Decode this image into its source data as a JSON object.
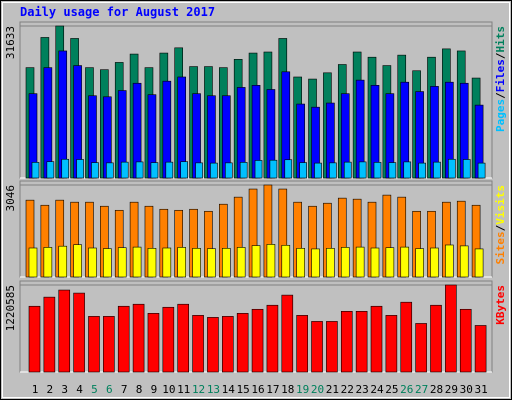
{
  "chart_data": [
    {
      "type": "bar",
      "title": "Daily usage for August 2017",
      "legend_separator": "/",
      "ylim": [
        0,
        31633
      ],
      "yticks": [
        31633
      ],
      "series": [
        {
          "name": "Pages",
          "color": "#00c0ff",
          "values": [
            3250,
            3400,
            3900,
            3850,
            3200,
            3150,
            3300,
            3350,
            3200,
            3300,
            3400,
            3150,
            3100,
            3150,
            3250,
            3650,
            3700,
            3800,
            3200,
            3100,
            3150,
            3300,
            3350,
            3250,
            3200,
            3350,
            3100,
            3300,
            3900,
            3850,
            3100
          ]
        },
        {
          "name": "Files",
          "color": "#0000ff",
          "values": [
            17550,
            22970,
            26440,
            23400,
            17120,
            16900,
            18200,
            19720,
            17340,
            20150,
            21020,
            17550,
            17120,
            17120,
            18850,
            19290,
            18420,
            22100,
            15390,
            14740,
            15600,
            17550,
            20370,
            19290,
            17550,
            19940,
            17990,
            19070,
            19940,
            19720,
            15170
          ]
        },
        {
          "name": "Hits",
          "color": "#00805c",
          "values": [
            22970,
            29250,
            31633,
            29040,
            22970,
            22540,
            24050,
            25790,
            22970,
            26000,
            27090,
            23190,
            23190,
            22970,
            24700,
            26000,
            26220,
            29040,
            21020,
            20590,
            21890,
            23620,
            26220,
            25140,
            23400,
            25570,
            22320,
            25140,
            26870,
            26440,
            20800
          ]
        }
      ]
    },
    {
      "type": "bar",
      "legend_separator": "/",
      "ylim": [
        0,
        3046
      ],
      "yticks": [
        3046
      ],
      "series": [
        {
          "name": "Sites",
          "color": "#ff8000",
          "values": [
            2544,
            2376,
            2544,
            2477,
            2477,
            2343,
            2209,
            2477,
            2343,
            2243,
            2209,
            2243,
            2176,
            2410,
            2644,
            2912,
            3046,
            2912,
            2477,
            2343,
            2443,
            2611,
            2577,
            2477,
            2711,
            2644,
            2176,
            2176,
            2477,
            2510,
            2376
          ]
        },
        {
          "name": "Visits",
          "color": "#ffff00",
          "values": [
            960,
            980,
            1020,
            1070,
            960,
            940,
            970,
            990,
            950,
            960,
            980,
            950,
            940,
            950,
            980,
            1040,
            1080,
            1050,
            950,
            930,
            950,
            980,
            990,
            960,
            970,
            990,
            940,
            960,
            1060,
            1030,
            930
          ]
        }
      ]
    },
    {
      "type": "bar",
      "ylim": [
        0,
        1220585
      ],
      "yticks": [
        1220585
      ],
      "categories": [
        "1",
        "2",
        "3",
        "4",
        "5",
        "6",
        "7",
        "8",
        "9",
        "10",
        "11",
        "12",
        "13",
        "14",
        "15",
        "16",
        "17",
        "18",
        "19",
        "20",
        "21",
        "22",
        "23",
        "24",
        "25",
        "26",
        "27",
        "28",
        "29",
        "30",
        "31"
      ],
      "category_colors": [
        "#000000",
        "#000000",
        "#000000",
        "#000000",
        "#00805c",
        "#00805c",
        "#000000",
        "#000000",
        "#000000",
        "#000000",
        "#000000",
        "#00805c",
        "#00805c",
        "#000000",
        "#000000",
        "#000000",
        "#000000",
        "#000000",
        "#00805c",
        "#00805c",
        "#000000",
        "#000000",
        "#000000",
        "#000000",
        "#000000",
        "#00805c",
        "#00805c",
        "#000000",
        "#000000",
        "#000000",
        "#000000"
      ],
      "series": [
        {
          "name": "KBytes",
          "color": "#ff0000",
          "values": [
            922545,
            1050282,
            1149633,
            1107054,
            780615,
            780615,
            922545,
            950931,
            823194,
            908352,
            950931,
            794808,
            766422,
            780615,
            823194,
            879966,
            936738,
            1078668,
            794808,
            709650,
            709650,
            851580,
            851580,
            922545,
            794808,
            979317,
            681264,
            936738,
            1220585,
            879966,
            652878
          ]
        }
      ]
    }
  ]
}
